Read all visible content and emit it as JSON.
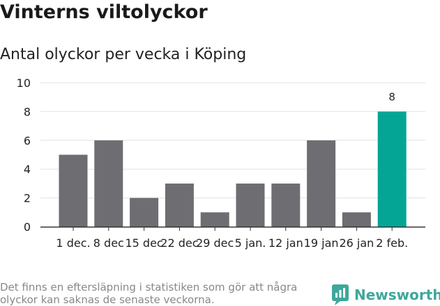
{
  "header": {
    "title": "Vinterns viltolyckor",
    "subtitle": "Antal olyckor per vecka i Köping"
  },
  "chart_data": {
    "type": "bar",
    "title": "Vinterns viltolyckor",
    "subtitle": "Antal olyckor per vecka i Köping",
    "xlabel": "",
    "ylabel": "",
    "categories": [
      "1 dec.",
      "8 dec",
      "15 dec",
      "22 dec",
      "29 dec",
      "5 jan.",
      "12 jan",
      "19 jan",
      "26 jan",
      "2 feb."
    ],
    "values": [
      5,
      6,
      2,
      3,
      1,
      3,
      3,
      6,
      1,
      8
    ],
    "highlighted_index": 9,
    "highlight_data_label": "8",
    "ylim": [
      0,
      10
    ],
    "yticks": [
      0,
      2,
      4,
      6,
      8,
      10
    ],
    "grid": true,
    "colors": {
      "bar": "#6e6d72",
      "highlight": "#05a596",
      "grid": "#e2e2e2",
      "axis": "#333333"
    }
  },
  "footer": {
    "note": "Det finns en eftersläpning i statistiken som gör att några olyckor kan saknas de senaste veckorna.",
    "brand": "Newsworthy",
    "brand_icon": "newsworthy-logo-icon",
    "brand_color": "#3fa79b"
  }
}
